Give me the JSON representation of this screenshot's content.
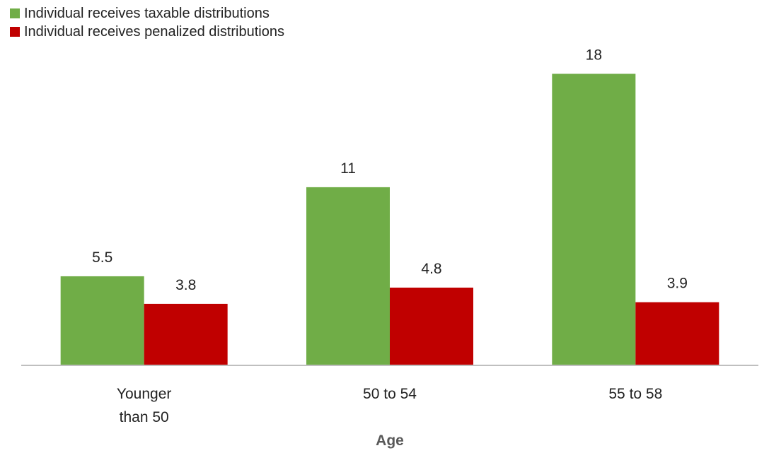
{
  "chart_data": {
    "type": "bar",
    "categories": [
      "Younger than 50",
      "50 to 54",
      "55 to 58"
    ],
    "category_label_lines": [
      [
        "Younger",
        "than 50"
      ],
      [
        "50 to 54"
      ],
      [
        "55 to 58"
      ]
    ],
    "series": [
      {
        "name": "Individual receives taxable distributions",
        "values": [
          5.5,
          11,
          18
        ],
        "value_labels": [
          "5.5",
          "11",
          "18"
        ],
        "color": "#70ad47"
      },
      {
        "name": "Individual receives penalized distributions",
        "values": [
          3.8,
          4.8,
          3.9
        ],
        "value_labels": [
          "3.8",
          "4.8",
          "3.9"
        ],
        "color": "#c00000"
      }
    ],
    "title": "",
    "xlabel": "Age",
    "ylabel": "",
    "ylim": [
      0,
      18.5
    ],
    "grid": false,
    "legend_position": "top-left",
    "axis_color": "#bfbfbf"
  }
}
